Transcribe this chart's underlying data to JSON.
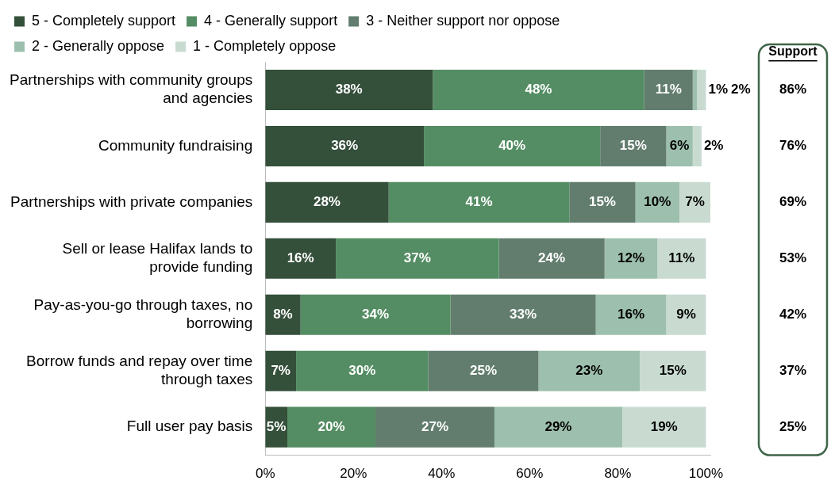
{
  "chart_data": {
    "type": "bar",
    "orientation": "horizontal",
    "stacked": true,
    "legend": "top",
    "grid": false,
    "categories": [
      "Partnerships with community groups and agencies",
      "Community fundraising",
      "Partnerships with private companies",
      "Sell or lease Halifax lands to provide funding",
      "Pay-as-you-go through taxes, no borrowing",
      "Borrow funds and repay over time through taxes",
      "Full user pay basis"
    ],
    "series": [
      {
        "name": "5 - Completely support",
        "color": "#344f3a",
        "values": [
          38,
          36,
          28,
          16,
          8,
          7,
          5
        ],
        "value_labels": [
          "38%",
          "36%",
          "28%",
          "16%",
          "8%",
          "7%",
          "5%"
        ]
      },
      {
        "name": "4 - Generally support",
        "color": "#548d63",
        "values": [
          48,
          40,
          41,
          37,
          34,
          30,
          20
        ],
        "value_labels": [
          "48%",
          "40%",
          "41%",
          "37%",
          "34%",
          "30%",
          "20%"
        ]
      },
      {
        "name": "3 - Neither support nor oppose",
        "color": "#627d6e",
        "values": [
          11,
          15,
          15,
          24,
          33,
          25,
          27
        ],
        "value_labels": [
          "11%",
          "15%",
          "15%",
          "24%",
          "33%",
          "25%",
          "27%"
        ]
      },
      {
        "name": "2 - Generally oppose",
        "color": "#9dbfad",
        "values": [
          1,
          6,
          10,
          12,
          16,
          23,
          29
        ],
        "value_labels": [
          "1%",
          "6%",
          "10%",
          "12%",
          "16%",
          "23%",
          "29%"
        ]
      },
      {
        "name": "1 - Completely oppose",
        "color": "#c9dbd1",
        "values": [
          2,
          2,
          7,
          11,
          9,
          15,
          19
        ],
        "value_labels": [
          "2%",
          "2%",
          "7%",
          "11%",
          "9%",
          "15%",
          "19%"
        ]
      }
    ],
    "xlim": [
      0,
      101
    ],
    "xticks": [
      {
        "value": 0,
        "label": "0%"
      },
      {
        "value": 20,
        "label": "20%"
      },
      {
        "value": 40,
        "label": "40%"
      },
      {
        "value": 60,
        "label": "60%"
      },
      {
        "value": 80,
        "label": "80%"
      },
      {
        "value": 100,
        "label": "100%"
      }
    ],
    "annotations": [
      "Support",
      "86%",
      "76%",
      "69%",
      "53%",
      "42%",
      "37%",
      "25%"
    ]
  }
}
